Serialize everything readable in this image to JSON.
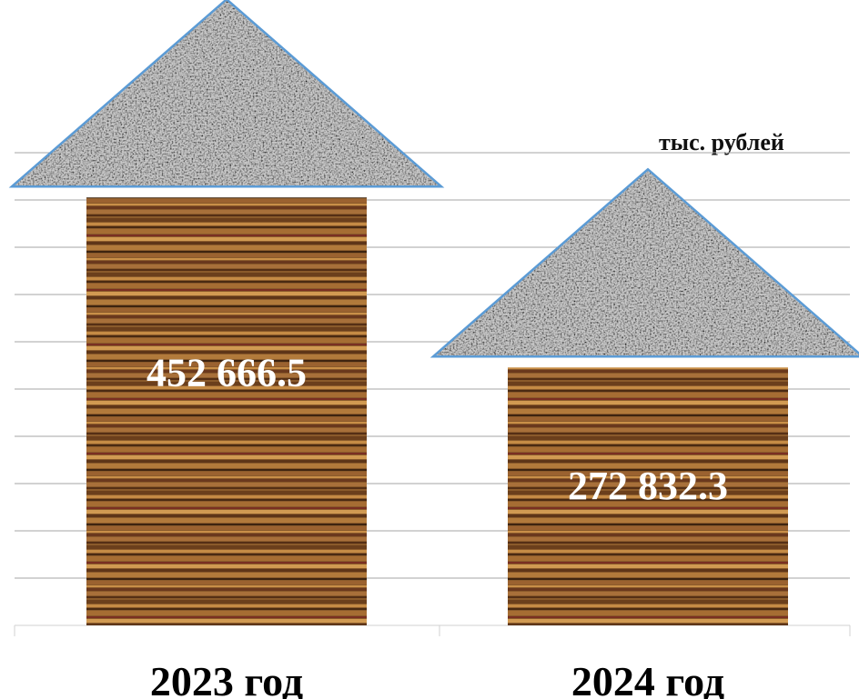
{
  "chart_data": {
    "type": "bar",
    "categories": [
      "2023 год",
      "2024 год"
    ],
    "values": [
      452666.5,
      272832.3
    ],
    "value_labels": [
      "452 666.5",
      "272 832.3"
    ],
    "unit": "тыс. рублей",
    "grid": true,
    "ylim": [
      0,
      500000
    ],
    "colors": {
      "gridline": "#a6a6a6",
      "roof_stroke": "#5b9bd5",
      "wood_base": "#8a5a2b",
      "stone_base": "#b5b5b5"
    }
  }
}
